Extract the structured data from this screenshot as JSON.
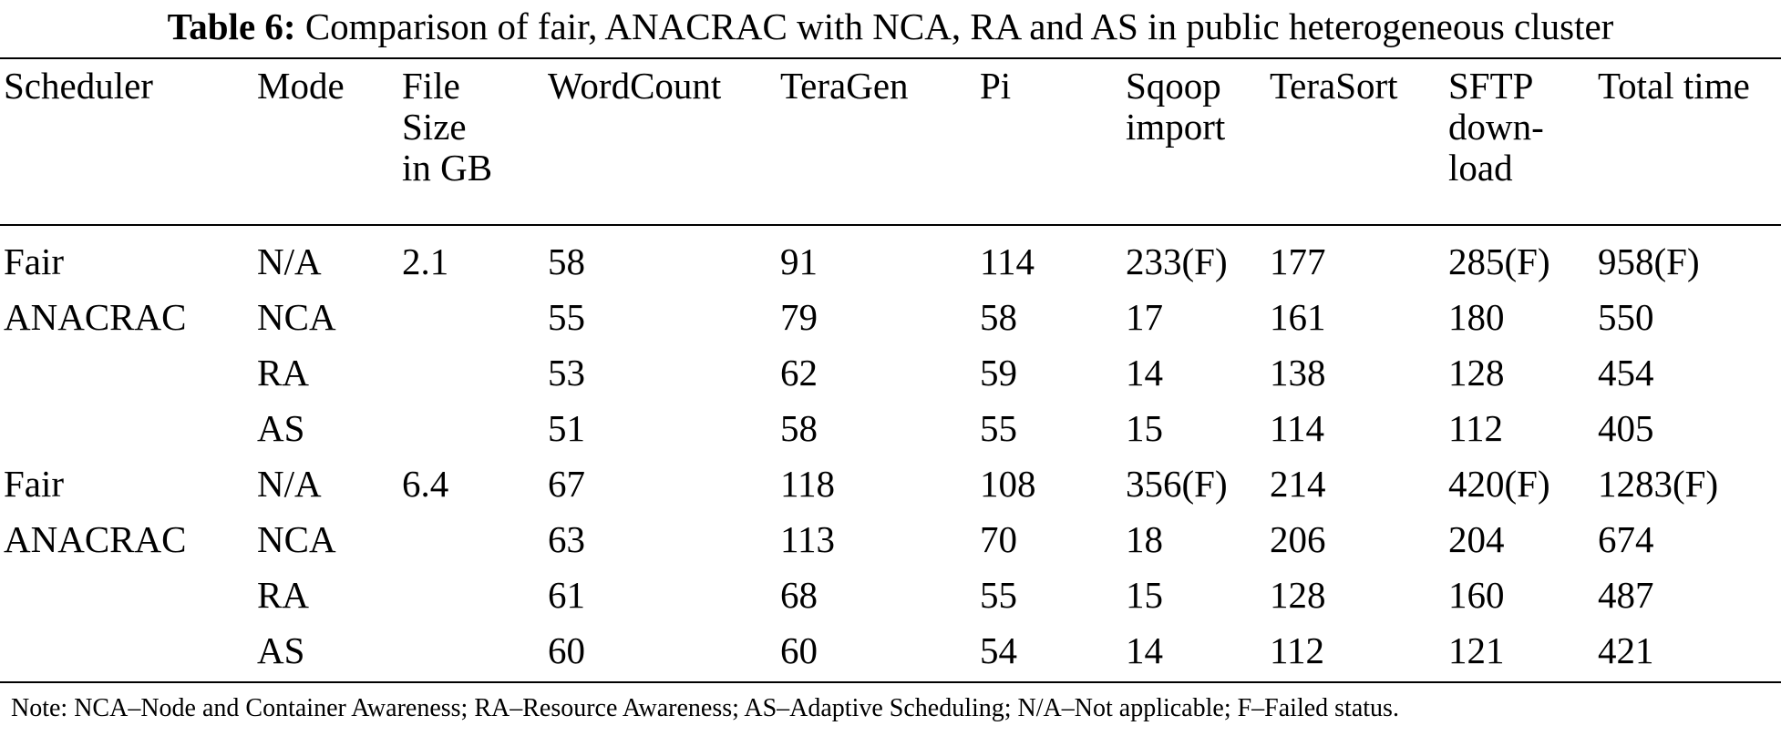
{
  "caption": {
    "label": "Table 6:",
    "text": "Comparison of fair, ANACRAC with NCA, RA and AS in public heterogeneous cluster"
  },
  "table": {
    "headers": [
      [
        "Scheduler"
      ],
      [
        "Mode"
      ],
      [
        "File",
        "Size",
        "in GB"
      ],
      [
        "WordCount"
      ],
      [
        "TeraGen"
      ],
      [
        "Pi"
      ],
      [
        "Sqoop",
        "import"
      ],
      [
        "TeraSort"
      ],
      [
        "SFTP",
        "down-",
        "load"
      ],
      [
        "Total time"
      ]
    ],
    "rows": [
      [
        "Fair",
        "N/A",
        "2.1",
        "58",
        "91",
        "114",
        "233(F)",
        "177",
        "285(F)",
        "958(F)"
      ],
      [
        "ANACRAC",
        "NCA",
        "",
        "55",
        "79",
        "58",
        "17",
        "161",
        "180",
        "550"
      ],
      [
        "",
        "RA",
        "",
        "53",
        "62",
        "59",
        "14",
        "138",
        "128",
        "454"
      ],
      [
        "",
        "AS",
        "",
        "51",
        "58",
        "55",
        "15",
        "114",
        "112",
        "405"
      ],
      [
        "Fair",
        "N/A",
        "6.4",
        "67",
        "118",
        "108",
        "356(F)",
        "214",
        "420(F)",
        "1283(F)"
      ],
      [
        "ANACRAC",
        "NCA",
        "",
        "63",
        "113",
        "70",
        "18",
        "206",
        "204",
        "674"
      ],
      [
        "",
        "RA",
        "",
        "61",
        "68",
        "55",
        "15",
        "128",
        "160",
        "487"
      ],
      [
        "",
        "AS",
        "",
        "60",
        "60",
        "54",
        "14",
        "112",
        "121",
        "421"
      ]
    ]
  },
  "note": "Note: NCA–Node and Container Awareness; RA–Resource Awareness; AS–Adaptive Scheduling; N/A–Not applicable; F–Failed status."
}
